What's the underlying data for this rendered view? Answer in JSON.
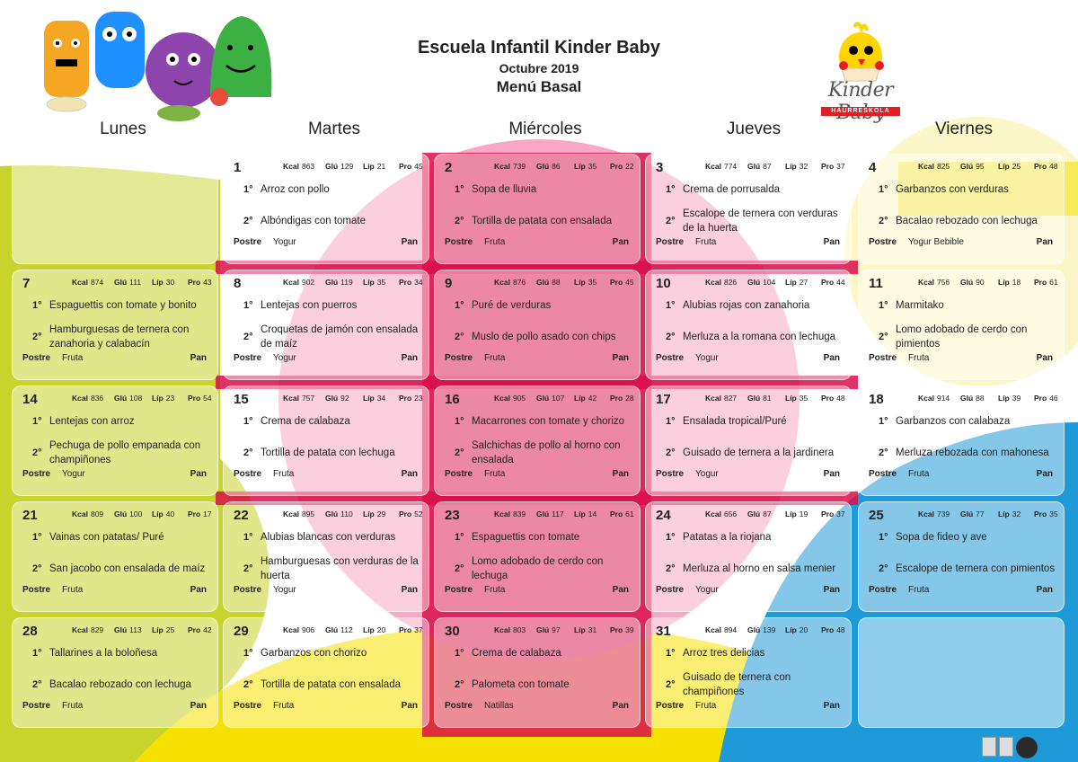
{
  "header": {
    "school": "Escuela Infantil Kinder Baby",
    "month": "Octubre 2019",
    "menu_title": "Menú Basal",
    "brand_name": "Kinder Baby",
    "brand_sub": "HAURRESKOLA"
  },
  "colors": {
    "yellow": "#f6e000",
    "lime": "#c6d42c",
    "pink": "#f8a8c4",
    "red": "#d80f4b",
    "blue": "#1f9ad8"
  },
  "labels": {
    "kcal": "Kcal",
    "glu": "Glú",
    "lip": "Líp",
    "pro": "Pro",
    "first": "1°",
    "second": "2°",
    "postre": "Postre",
    "pan": "Pan"
  },
  "weekdays": [
    "Lunes",
    "Martes",
    "Miércoles",
    "Jueves",
    "Viernes"
  ],
  "weeks": [
    [
      null,
      {
        "day": "1",
        "kcal": "863",
        "glu": "129",
        "lip": "21",
        "pro": "45",
        "first": "Arroz con pollo",
        "second": "Albóndigas con tomate",
        "postre": "Yogur"
      },
      {
        "day": "2",
        "kcal": "739",
        "glu": "86",
        "lip": "35",
        "pro": "22",
        "first": "Sopa de lluvia",
        "second": "Tortilla de patata con ensalada",
        "postre": "Fruta"
      },
      {
        "day": "3",
        "kcal": "774",
        "glu": "87",
        "lip": "32",
        "pro": "37",
        "first": "Crema de porrusalda",
        "second": "Escalope de ternera con verduras de la huerta",
        "postre": "Fruta"
      },
      {
        "day": "4",
        "kcal": "825",
        "glu": "95",
        "lip": "25",
        "pro": "48",
        "first": "Garbanzos con verduras",
        "second": "Bacalao rebozado con lechuga",
        "postre": "Yogur Bebible"
      }
    ],
    [
      {
        "day": "7",
        "kcal": "874",
        "glu": "111",
        "lip": "30",
        "pro": "43",
        "first": "Espaguettis con tomate y bonito",
        "second": "Hamburguesas de ternera con zanahoria y calabacín",
        "postre": "Fruta"
      },
      {
        "day": "8",
        "kcal": "902",
        "glu": "119",
        "lip": "35",
        "pro": "34",
        "first": "Lentejas con puerros",
        "second": "Croquetas de jamón con ensalada de maíz",
        "postre": "Yogur"
      },
      {
        "day": "9",
        "kcal": "876",
        "glu": "88",
        "lip": "35",
        "pro": "45",
        "first": "Puré de verduras",
        "second": "Muslo de pollo asado con chips",
        "postre": "Fruta"
      },
      {
        "day": "10",
        "kcal": "826",
        "glu": "104",
        "lip": "27",
        "pro": "44",
        "first": "Alubias rojas con zanahoria",
        "second": "Merluza a la romana con lechuga",
        "postre": "Yogur"
      },
      {
        "day": "11",
        "kcal": "756",
        "glu": "90",
        "lip": "18",
        "pro": "61",
        "first": "Marmitako",
        "second": "Lomo adobado de cerdo con pimientos",
        "postre": "Fruta"
      }
    ],
    [
      {
        "day": "14",
        "kcal": "836",
        "glu": "108",
        "lip": "23",
        "pro": "54",
        "first": "Lentejas con arroz",
        "second": "Pechuga de pollo empanada con champiñones",
        "postre": "Yogur"
      },
      {
        "day": "15",
        "kcal": "757",
        "glu": "92",
        "lip": "34",
        "pro": "23",
        "first": "Crema de calabaza",
        "second": "Tortilla de patata con lechuga",
        "postre": "Fruta"
      },
      {
        "day": "16",
        "kcal": "905",
        "glu": "107",
        "lip": "42",
        "pro": "28",
        "first": "Macarrones con tomate y chorizo",
        "second": "Salchichas de pollo al horno con ensalada",
        "postre": "Fruta"
      },
      {
        "day": "17",
        "kcal": "827",
        "glu": "81",
        "lip": "35",
        "pro": "48",
        "first": "Ensalada tropical/Puré",
        "second": "Guisado de ternera a la jardinera",
        "postre": "Yogur"
      },
      {
        "day": "18",
        "kcal": "914",
        "glu": "88",
        "lip": "39",
        "pro": "46",
        "first": "Garbanzos con calabaza",
        "second": "Merluza rebozada con mahonesa",
        "postre": "Fruta"
      }
    ],
    [
      {
        "day": "21",
        "kcal": "809",
        "glu": "100",
        "lip": "40",
        "pro": "17",
        "first": "Vainas con patatas/ Puré",
        "second": "San jacobo con ensalada de maíz",
        "postre": "Fruta"
      },
      {
        "day": "22",
        "kcal": "895",
        "glu": "110",
        "lip": "29",
        "pro": "52",
        "first": "Alubias blancas con verduras",
        "second": "Hamburguesas con verduras de la huerta",
        "postre": "Yogur"
      },
      {
        "day": "23",
        "kcal": "839",
        "glu": "117",
        "lip": "14",
        "pro": "61",
        "first": "Espaguettis con tomate",
        "second": "Lomo adobado de cerdo con lechuga",
        "postre": "Fruta"
      },
      {
        "day": "24",
        "kcal": "656",
        "glu": "87",
        "lip": "19",
        "pro": "37",
        "first": "Patatas a la riojana",
        "second": "Merluza al horno en salsa menier",
        "postre": "Yogur"
      },
      {
        "day": "25",
        "kcal": "739",
        "glu": "77",
        "lip": "32",
        "pro": "35",
        "first": "Sopa de fideo y ave",
        "second": "Escalope de ternera con pimientos",
        "postre": "Fruta"
      }
    ],
    [
      {
        "day": "28",
        "kcal": "829",
        "glu": "113",
        "lip": "25",
        "pro": "42",
        "first": "Tallarines a la boloñesa",
        "second": "Bacalao rebozado con lechuga",
        "postre": "Fruta"
      },
      {
        "day": "29",
        "kcal": "906",
        "glu": "112",
        "lip": "20",
        "pro": "37",
        "first": "Garbanzos con chorizo",
        "second": "Tortilla de patata con ensalada",
        "postre": "Fruta"
      },
      {
        "day": "30",
        "kcal": "803",
        "glu": "97",
        "lip": "31",
        "pro": "39",
        "first": "Crema de calabaza",
        "second": "Palometa con tomate",
        "postre": "Natillas"
      },
      {
        "day": "31",
        "kcal": "894",
        "glu": "139",
        "lip": "20",
        "pro": "48",
        "first": "Arroz tres delicias",
        "second": "Guisado de ternera con champiñones",
        "postre": "Fruta"
      },
      null
    ]
  ]
}
